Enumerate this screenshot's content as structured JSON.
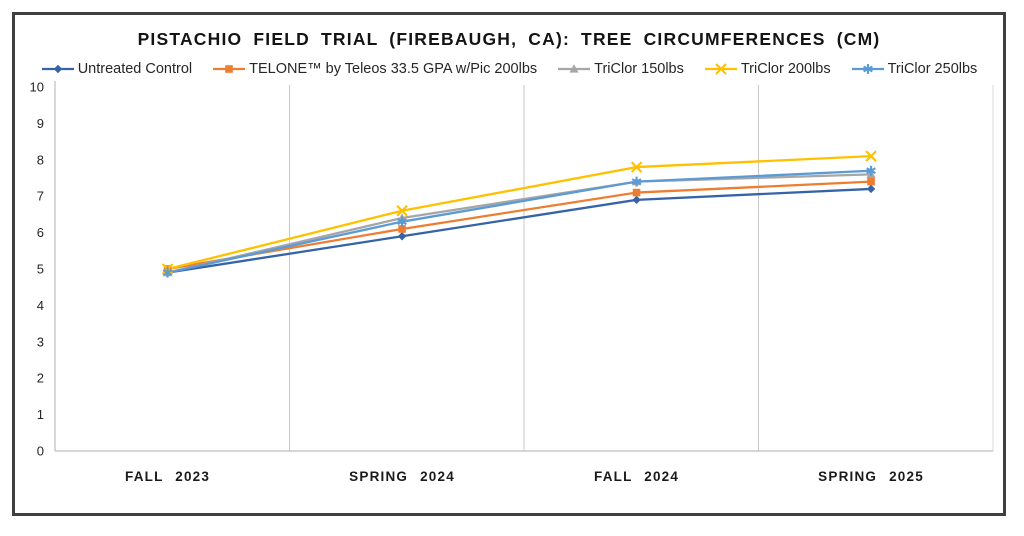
{
  "chart_data": {
    "type": "line",
    "title": "PISTACHIO FIELD TRIAL (FIREBAUGH, CA): TREE CIRCUMFERENCES (CM)",
    "categories": [
      "FALL 2023",
      "SPRING 2024",
      "FALL 2024",
      "SPRING 2025"
    ],
    "series": [
      {
        "name": "Untreated Control",
        "color": "#3563A8",
        "marker": "diamond",
        "values": [
          4.9,
          5.9,
          6.9,
          7.2
        ]
      },
      {
        "name": "TELONE™ by Teleos 33.5 GPA w/Pic 200lbs",
        "color": "#ED7D31",
        "marker": "square",
        "values": [
          5.0,
          6.1,
          7.1,
          7.4
        ]
      },
      {
        "name": "TriClor 150lbs",
        "color": "#A6A6A6",
        "marker": "triangle",
        "values": [
          4.9,
          6.4,
          7.4,
          7.6
        ]
      },
      {
        "name": "TriClor 200lbs",
        "color": "#FFC000",
        "marker": "x",
        "values": [
          5.0,
          6.6,
          7.8,
          8.1
        ]
      },
      {
        "name": "TriClor 250lbs",
        "color": "#5B9BD5",
        "marker": "asterisk",
        "values": [
          4.9,
          6.3,
          7.4,
          7.7
        ]
      }
    ],
    "ylim": [
      0,
      10
    ],
    "ytick_step": 1,
    "yticks": [
      0,
      1,
      2,
      3,
      4,
      5,
      6,
      7,
      8,
      9,
      10
    ],
    "xlabel": "",
    "ylabel": "",
    "legend_position": "top",
    "grid": "vertical-category-separators",
    "colors": {
      "frame_border": "#404040",
      "axis_line": "#bfbfbf",
      "gridline": "#c9c9c9",
      "right_edge_line": "#d9d9d9",
      "text": "#262626"
    }
  }
}
